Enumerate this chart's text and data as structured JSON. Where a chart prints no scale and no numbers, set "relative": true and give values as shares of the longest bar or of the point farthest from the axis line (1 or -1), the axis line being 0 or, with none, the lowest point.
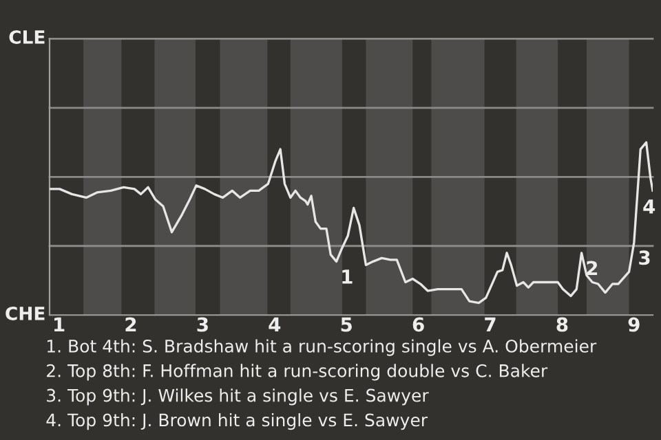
{
  "chart_data": {
    "type": "line",
    "relative": true,
    "x": [
      0.87,
      1.01,
      1.18,
      1.38,
      1.53,
      1.72,
      1.9,
      2.05,
      2.14,
      2.24,
      2.34,
      2.45,
      2.57,
      2.71,
      2.82,
      2.91,
      3.03,
      3.16,
      3.28,
      3.41,
      3.52,
      3.66,
      3.78,
      3.91,
      4.01,
      4.08,
      4.14,
      4.22,
      4.29,
      4.36,
      4.43,
      4.46,
      4.51,
      4.57,
      4.64,
      4.72,
      4.78,
      4.86,
      4.93,
      5.02,
      5.1,
      5.18,
      5.27,
      5.37,
      5.49,
      5.61,
      5.7,
      5.82,
      5.92,
      6.03,
      6.13,
      6.27,
      6.41,
      6.6,
      6.71,
      6.84,
      6.94,
      7.1,
      7.17,
      7.23,
      7.29,
      7.37,
      7.46,
      7.53,
      7.6,
      7.7,
      7.83,
      7.94,
      8.01,
      8.12,
      8.2,
      8.27,
      8.34,
      8.42,
      8.5,
      8.6,
      8.7,
      8.78,
      8.93,
      9.0,
      9.09,
      9.17,
      9.23,
      9.26
    ],
    "series": [
      {
        "color": "#e6e6e6",
        "values": [
          0.73,
          0.73,
          0.7,
          0.68,
          0.71,
          0.72,
          0.74,
          0.73,
          0.7,
          0.74,
          0.67,
          0.63,
          0.48,
          0.58,
          0.67,
          0.75,
          0.73,
          0.7,
          0.68,
          0.72,
          0.68,
          0.72,
          0.72,
          0.76,
          0.89,
          0.96,
          0.76,
          0.68,
          0.72,
          0.68,
          0.66,
          0.64,
          0.69,
          0.54,
          0.5,
          0.5,
          0.35,
          0.31,
          0.38,
          0.46,
          0.62,
          0.52,
          0.29,
          0.31,
          0.33,
          0.32,
          0.32,
          0.19,
          0.21,
          0.18,
          0.14,
          0.15,
          0.15,
          0.15,
          0.08,
          0.07,
          0.1,
          0.25,
          0.26,
          0.36,
          0.29,
          0.17,
          0.19,
          0.16,
          0.19,
          0.19,
          0.19,
          0.19,
          0.15,
          0.11,
          0.15,
          0.36,
          0.23,
          0.19,
          0.18,
          0.13,
          0.18,
          0.18,
          0.25,
          0.42,
          0.96,
          1,
          0.79,
          0.72
        ]
      }
    ],
    "xlim": [
      0.87,
      9.26
    ],
    "xticks": [
      1,
      2,
      3,
      4,
      5,
      6,
      7,
      8,
      9
    ],
    "marker": "none",
    "line_style": "solid",
    "ref_lines": [
      {
        "axis": "y",
        "value": 0.4,
        "color": "#8a8a8a"
      },
      {
        "axis": "y",
        "value": 0.8,
        "color": "#8a8a8a"
      },
      {
        "axis": "y",
        "value": 1.2,
        "color": "#8a8a8a"
      },
      {
        "axis": "y",
        "value": 1.6,
        "color": "#8a8a8a"
      }
    ],
    "bands": [
      {
        "axis": "x",
        "from": 1.34,
        "to": 1.87,
        "color": "#4d4c4a"
      },
      {
        "axis": "x",
        "from": 2.33,
        "to": 2.9,
        "color": "#4d4c4a"
      },
      {
        "axis": "x",
        "from": 3.24,
        "to": 3.9,
        "color": "#4d4c4a"
      },
      {
        "axis": "x",
        "from": 4.22,
        "to": 4.94,
        "color": "#4d4c4a"
      },
      {
        "axis": "x",
        "from": 5.27,
        "to": 5.92,
        "color": "#4d4c4a"
      },
      {
        "axis": "x",
        "from": 6.18,
        "to": 6.92,
        "color": "#4d4c4a"
      },
      {
        "axis": "x",
        "from": 7.36,
        "to": 7.94,
        "color": "#4d4c4a"
      },
      {
        "axis": "x",
        "from": 8.34,
        "to": 8.93,
        "color": "#4d4c4a"
      }
    ],
    "annotations": [
      "CLE",
      "CHE",
      {
        "text": "1",
        "x": 4.86,
        "y": 0.31
      },
      {
        "text": "2",
        "x": 8.27,
        "y": 0.36
      },
      {
        "text": "3",
        "x": 9.0,
        "y": 0.42
      },
      {
        "text": "4",
        "x": 9.09,
        "y": 0.96
      },
      "1. Bot 4th: S. Bradshaw hit a run-scoring single vs A. Obermeier",
      "2. Top 8th: F. Hoffman hit a run-scoring double vs C. Baker",
      "3. Top 9th: J. Wilkes hit a single vs E. Sawyer",
      "4. Top 9th: J. Brown hit a single vs E. Sawyer"
    ]
  }
}
